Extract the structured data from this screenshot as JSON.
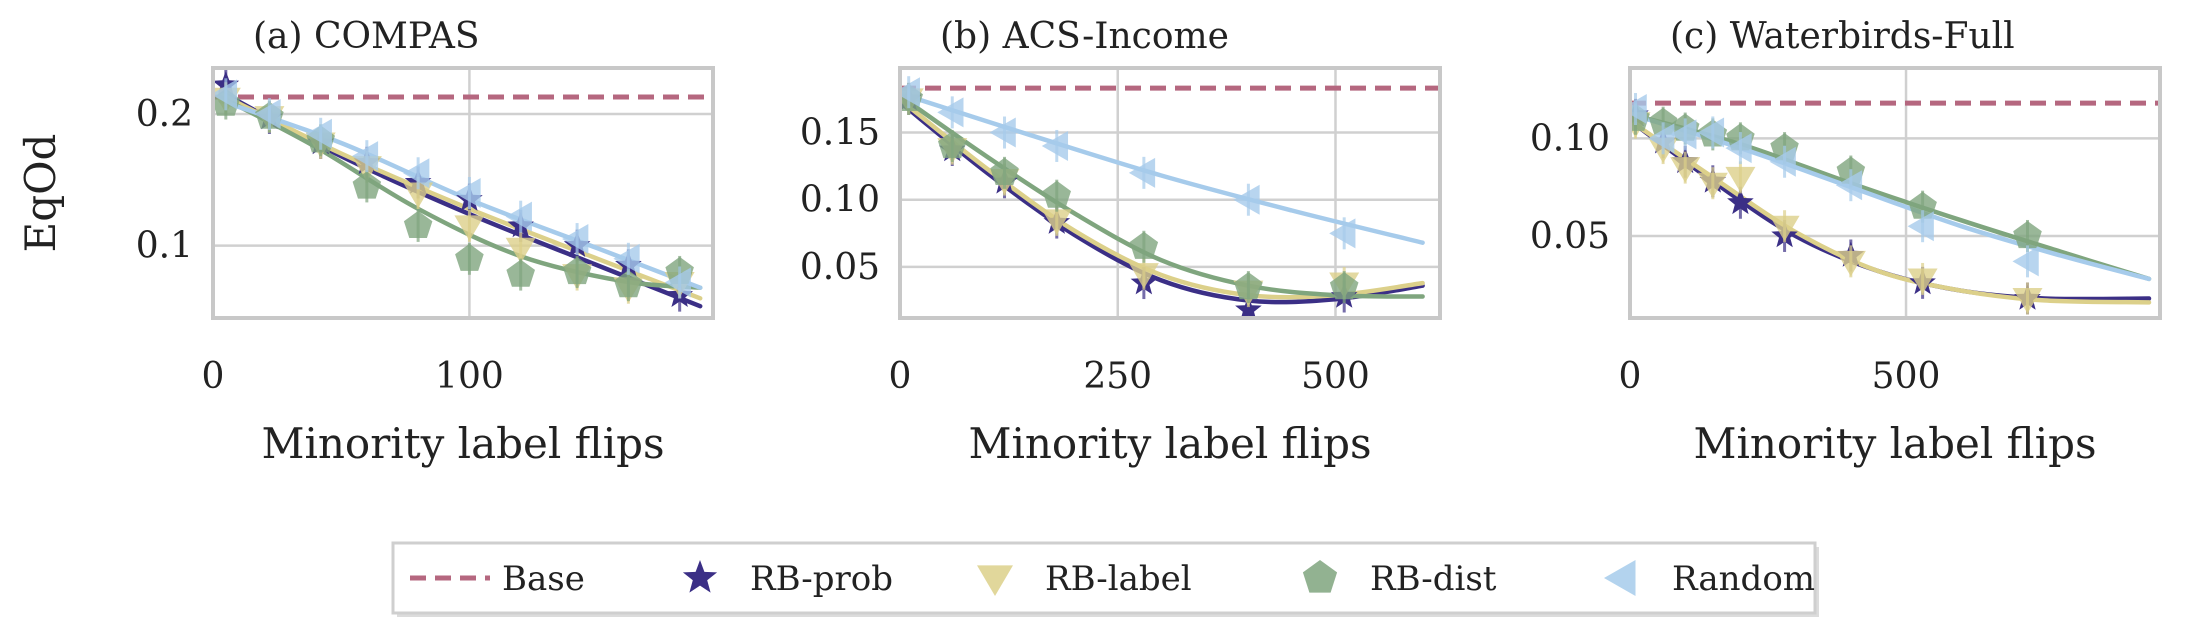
{
  "figure": {
    "colors": {
      "base": "#b5677f",
      "rb_prob": "#3b2f86",
      "rb_label": "#dcd08a",
      "rb_dist": "#7fa57e",
      "random": "#a6cbeb",
      "grid": "#d0d0d0",
      "frame": "#c8c8c8"
    }
  },
  "legend": {
    "items": [
      {
        "label": "Base",
        "key": "base",
        "marker": "dash"
      },
      {
        "label": "RB-prob",
        "key": "rb_prob",
        "marker": "star"
      },
      {
        "label": "RB-label",
        "key": "rb_label",
        "marker": "tri-down"
      },
      {
        "label": "RB-dist",
        "key": "rb_dist",
        "marker": "pentagon"
      },
      {
        "label": "Random",
        "key": "random",
        "marker": "tri-left"
      }
    ]
  },
  "chart_data": [
    {
      "type": "line",
      "title": "(a) COMPAS",
      "xlabel": "Minority label flips",
      "ylabel": "EqOd",
      "xlim": [
        0,
        195
      ],
      "ylim": [
        0.045,
        0.235
      ],
      "xticks": [
        {
          "v": 0,
          "t": "0"
        },
        {
          "v": 100,
          "t": "100"
        }
      ],
      "yticks": [
        {
          "v": 0.1,
          "t": "0.1"
        },
        {
          "v": 0.2,
          "t": "0.2"
        }
      ],
      "xgrid": [
        0,
        100
      ],
      "ygrid": [
        0.1,
        0.2
      ],
      "base": 0.213,
      "series": [
        {
          "name": "RB-prob",
          "key": "rb_prob",
          "marker": "star",
          "points": [
            [
              5,
              0.222
            ],
            [
              22,
              0.197
            ],
            [
              42,
              0.178
            ],
            [
              60,
              0.163
            ],
            [
              80,
              0.148
            ],
            [
              100,
              0.135
            ],
            [
              120,
              0.115
            ],
            [
              142,
              0.1
            ],
            [
              162,
              0.085
            ],
            [
              182,
              0.062
            ]
          ],
          "curve": [
            [
              3,
              0.217
            ],
            [
              50,
              0.168
            ],
            [
              100,
              0.124
            ],
            [
              150,
              0.085
            ],
            [
              190,
              0.054
            ]
          ]
        },
        {
          "name": "RB-label",
          "key": "rb_label",
          "marker": "tri-down",
          "points": [
            [
              5,
              0.212
            ],
            [
              22,
              0.198
            ],
            [
              42,
              0.178
            ],
            [
              60,
              0.16
            ],
            [
              80,
              0.14
            ],
            [
              100,
              0.115
            ],
            [
              120,
              0.098
            ],
            [
              142,
              0.078
            ],
            [
              162,
              0.068
            ],
            [
              182,
              0.072
            ]
          ],
          "curve": [
            [
              3,
              0.215
            ],
            [
              50,
              0.17
            ],
            [
              100,
              0.128
            ],
            [
              150,
              0.09
            ],
            [
              190,
              0.06
            ]
          ]
        },
        {
          "name": "RB-dist",
          "key": "rb_dist",
          "marker": "pentagon",
          "points": [
            [
              5,
              0.208
            ],
            [
              22,
              0.198
            ],
            [
              42,
              0.18
            ],
            [
              60,
              0.145
            ],
            [
              80,
              0.115
            ],
            [
              100,
              0.09
            ],
            [
              120,
              0.078
            ],
            [
              142,
              0.08
            ],
            [
              162,
              0.07
            ],
            [
              182,
              0.08
            ]
          ],
          "curve": [
            [
              3,
              0.213
            ],
            [
              40,
              0.175
            ],
            [
              80,
              0.128
            ],
            [
              120,
              0.092
            ],
            [
              160,
              0.073
            ],
            [
              190,
              0.068
            ]
          ]
        },
        {
          "name": "Random",
          "key": "random",
          "marker": "tri-left",
          "points": [
            [
              5,
              0.215
            ],
            [
              22,
              0.2
            ],
            [
              42,
              0.185
            ],
            [
              60,
              0.168
            ],
            [
              80,
              0.155
            ],
            [
              100,
              0.14
            ],
            [
              120,
              0.122
            ],
            [
              142,
              0.105
            ],
            [
              162,
              0.09
            ],
            [
              182,
              0.072
            ]
          ],
          "curve": [
            [
              3,
              0.21
            ],
            [
              50,
              0.178
            ],
            [
              100,
              0.135
            ],
            [
              150,
              0.098
            ],
            [
              190,
              0.068
            ]
          ]
        }
      ]
    },
    {
      "type": "line",
      "title": "(b) ACS-Income",
      "xlabel": "Minority label flips",
      "ylabel": "",
      "xlim": [
        0,
        620
      ],
      "ylim": [
        0.012,
        0.198
      ],
      "xticks": [
        {
          "v": 0,
          "t": "0"
        },
        {
          "v": 250,
          "t": "250"
        },
        {
          "v": 500,
          "t": "500"
        }
      ],
      "yticks": [
        {
          "v": 0.05,
          "t": "0.05"
        },
        {
          "v": 0.1,
          "t": "0.10"
        },
        {
          "v": 0.15,
          "t": "0.15"
        }
      ],
      "xgrid": [
        0,
        250,
        500
      ],
      "ygrid": [
        0.05,
        0.1,
        0.15
      ],
      "base": 0.183,
      "series": [
        {
          "name": "RB-prob",
          "key": "rb_prob",
          "marker": "star",
          "points": [
            [
              10,
              0.175
            ],
            [
              60,
              0.137
            ],
            [
              120,
              0.113
            ],
            [
              180,
              0.083
            ],
            [
              280,
              0.038
            ],
            [
              400,
              0.018
            ],
            [
              510,
              0.028
            ]
          ],
          "curve": [
            [
              5,
              0.17
            ],
            [
              100,
              0.12
            ],
            [
              200,
              0.074
            ],
            [
              300,
              0.04
            ],
            [
              400,
              0.025
            ],
            [
              500,
              0.026
            ],
            [
              600,
              0.036
            ]
          ]
        },
        {
          "name": "RB-label",
          "key": "rb_label",
          "marker": "tri-down",
          "points": [
            [
              10,
              0.175
            ],
            [
              60,
              0.138
            ],
            [
              120,
              0.115
            ],
            [
              180,
              0.085
            ],
            [
              280,
              0.045
            ],
            [
              400,
              0.032
            ],
            [
              510,
              0.038
            ]
          ],
          "curve": [
            [
              5,
              0.172
            ],
            [
              100,
              0.123
            ],
            [
              200,
              0.077
            ],
            [
              300,
              0.044
            ],
            [
              400,
              0.029
            ],
            [
              500,
              0.029
            ],
            [
              600,
              0.038
            ]
          ]
        },
        {
          "name": "RB-dist",
          "key": "rb_dist",
          "marker": "pentagon",
          "points": [
            [
              10,
              0.175
            ],
            [
              60,
              0.14
            ],
            [
              120,
              0.12
            ],
            [
              180,
              0.103
            ],
            [
              280,
              0.065
            ],
            [
              400,
              0.035
            ],
            [
              510,
              0.035
            ]
          ],
          "curve": [
            [
              5,
              0.175
            ],
            [
              100,
              0.132
            ],
            [
              200,
              0.09
            ],
            [
              300,
              0.055
            ],
            [
              400,
              0.036
            ],
            [
              500,
              0.029
            ],
            [
              600,
              0.028
            ]
          ]
        },
        {
          "name": "Random",
          "key": "random",
          "marker": "tri-left",
          "points": [
            [
              10,
              0.18
            ],
            [
              60,
              0.165
            ],
            [
              120,
              0.15
            ],
            [
              180,
              0.14
            ],
            [
              280,
              0.12
            ],
            [
              400,
              0.1
            ],
            [
              510,
              0.075
            ]
          ],
          "curve": [
            [
              5,
              0.178
            ],
            [
              150,
              0.148
            ],
            [
              300,
              0.118
            ],
            [
              450,
              0.092
            ],
            [
              600,
              0.068
            ]
          ]
        }
      ]
    },
    {
      "type": "line",
      "title": "(c) Waterbirds-Full",
      "xlabel": "Minority label flips",
      "ylabel": "",
      "xlim": [
        0,
        960
      ],
      "ylim": [
        0.008,
        0.136
      ],
      "xticks": [
        {
          "v": 0,
          "t": "0"
        },
        {
          "v": 500,
          "t": "500"
        }
      ],
      "yticks": [
        {
          "v": 0.05,
          "t": "0.05"
        },
        {
          "v": 0.1,
          "t": "0.10"
        }
      ],
      "xgrid": [
        0,
        500
      ],
      "ygrid": [
        0.05,
        0.1
      ],
      "base": 0.118,
      "series": [
        {
          "name": "RB-prob",
          "key": "rb_prob",
          "marker": "star",
          "points": [
            [
              10,
              0.112
            ],
            [
              60,
              0.098
            ],
            [
              100,
              0.088
            ],
            [
              150,
              0.078
            ],
            [
              200,
              0.067
            ],
            [
              280,
              0.05
            ],
            [
              400,
              0.04
            ],
            [
              530,
              0.026
            ],
            [
              720,
              0.018
            ]
          ],
          "curve": [
            [
              5,
              0.108
            ],
            [
              150,
              0.078
            ],
            [
              300,
              0.05
            ],
            [
              450,
              0.032
            ],
            [
              600,
              0.022
            ],
            [
              750,
              0.018
            ],
            [
              940,
              0.018
            ]
          ]
        },
        {
          "name": "RB-label",
          "key": "rb_label",
          "marker": "tri-down",
          "points": [
            [
              10,
              0.108
            ],
            [
              60,
              0.095
            ],
            [
              100,
              0.085
            ],
            [
              150,
              0.077
            ],
            [
              200,
              0.08
            ],
            [
              280,
              0.055
            ],
            [
              400,
              0.037
            ],
            [
              530,
              0.028
            ],
            [
              720,
              0.018
            ]
          ],
          "curve": [
            [
              5,
              0.108
            ],
            [
              150,
              0.08
            ],
            [
              300,
              0.052
            ],
            [
              450,
              0.032
            ],
            [
              600,
              0.022
            ],
            [
              750,
              0.017
            ],
            [
              940,
              0.016
            ]
          ]
        },
        {
          "name": "RB-dist",
          "key": "rb_dist",
          "marker": "pentagon",
          "points": [
            [
              10,
              0.11
            ],
            [
              60,
              0.108
            ],
            [
              100,
              0.105
            ],
            [
              150,
              0.102
            ],
            [
              200,
              0.1
            ],
            [
              280,
              0.095
            ],
            [
              400,
              0.083
            ],
            [
              530,
              0.065
            ],
            [
              720,
              0.05
            ]
          ],
          "curve": [
            [
              5,
              0.112
            ],
            [
              200,
              0.097
            ],
            [
              400,
              0.077
            ],
            [
              600,
              0.058
            ],
            [
              780,
              0.042
            ],
            [
              940,
              0.028
            ]
          ]
        },
        {
          "name": "Random",
          "key": "random",
          "marker": "tri-left",
          "points": [
            [
              10,
              0.115
            ],
            [
              60,
              0.1
            ],
            [
              100,
              0.102
            ],
            [
              150,
              0.103
            ],
            [
              200,
              0.095
            ],
            [
              280,
              0.088
            ],
            [
              400,
              0.076
            ],
            [
              530,
              0.055
            ],
            [
              720,
              0.037
            ]
          ],
          "curve": [
            [
              5,
              0.112
            ],
            [
              200,
              0.095
            ],
            [
              400,
              0.075
            ],
            [
              600,
              0.055
            ],
            [
              780,
              0.04
            ],
            [
              940,
              0.028
            ]
          ]
        }
      ]
    }
  ]
}
